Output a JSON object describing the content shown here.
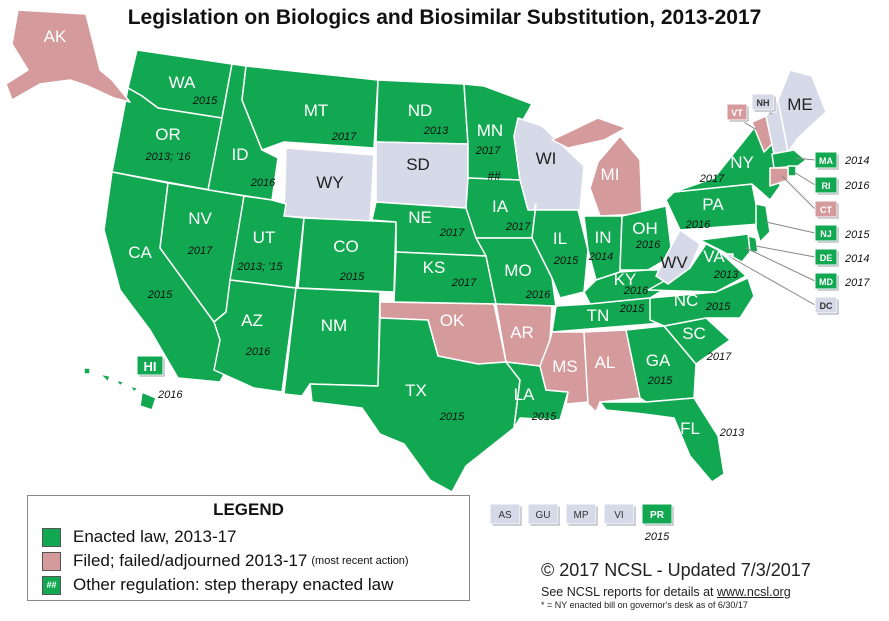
{
  "title": "Legislation on Biologics and Biosimilar Substitution, 2013-2017",
  "colors": {
    "enacted": "#11a851",
    "filed": "#d49a9c",
    "none": "#d5d9e8",
    "border": "#ffffff"
  },
  "states": {
    "WA": {
      "label": "WA",
      "year": "2015",
      "status": "enacted"
    },
    "OR": {
      "label": "OR",
      "year": "2013; '16",
      "status": "enacted"
    },
    "CA": {
      "label": "CA",
      "year": "2015",
      "status": "enacted"
    },
    "ID": {
      "label": "ID",
      "year": "2016",
      "status": "enacted"
    },
    "NV": {
      "label": "NV",
      "year": "2017",
      "status": "enacted"
    },
    "MT": {
      "label": "MT",
      "year": "2017",
      "status": "enacted"
    },
    "WY": {
      "label": "WY",
      "status": "none"
    },
    "UT": {
      "label": "UT",
      "year": "2013; '15",
      "status": "enacted"
    },
    "AZ": {
      "label": "AZ",
      "year": "2016",
      "status": "enacted"
    },
    "CO": {
      "label": "CO",
      "year": "2015",
      "status": "enacted"
    },
    "NM": {
      "label": "NM",
      "status": "enacted"
    },
    "ND": {
      "label": "ND",
      "year": "2013",
      "status": "enacted"
    },
    "SD": {
      "label": "SD",
      "status": "none"
    },
    "NE": {
      "label": "NE",
      "year": "2017",
      "status": "enacted"
    },
    "KS": {
      "label": "KS",
      "year": "2017",
      "status": "enacted"
    },
    "OK": {
      "label": "OK",
      "status": "filed"
    },
    "TX": {
      "label": "TX",
      "year": "2015",
      "status": "enacted"
    },
    "MN": {
      "label": "MN",
      "year": "2017",
      "extra": "##",
      "status": "enacted"
    },
    "IA": {
      "label": "IA",
      "year": "2017",
      "status": "enacted"
    },
    "MO": {
      "label": "MO",
      "year": "2016",
      "status": "enacted"
    },
    "AR": {
      "label": "AR",
      "status": "filed"
    },
    "LA": {
      "label": "LA",
      "year": "2015",
      "status": "enacted"
    },
    "WI": {
      "label": "WI",
      "status": "none"
    },
    "IL": {
      "label": "IL",
      "year": "2015",
      "status": "enacted"
    },
    "MI": {
      "label": "MI",
      "status": "filed"
    },
    "IN": {
      "label": "IN",
      "year": "2014",
      "status": "enacted"
    },
    "OH": {
      "label": "OH",
      "year": "2016",
      "status": "enacted"
    },
    "KY": {
      "label": "KY",
      "year": "2016",
      "status": "enacted"
    },
    "TN": {
      "label": "TN",
      "year": "2015",
      "status": "enacted"
    },
    "MS": {
      "label": "MS",
      "status": "filed"
    },
    "AL": {
      "label": "AL",
      "status": "filed"
    },
    "GA": {
      "label": "GA",
      "year": "2015",
      "status": "enacted"
    },
    "FL": {
      "label": "FL",
      "year": "2013",
      "status": "enacted"
    },
    "SC": {
      "label": "SC",
      "year": "2017",
      "status": "enacted"
    },
    "NC": {
      "label": "NC",
      "year": "2015",
      "status": "enacted"
    },
    "VA": {
      "label": "VA",
      "year": "2013",
      "status": "enacted"
    },
    "WV": {
      "label": "WV",
      "status": "none"
    },
    "PA": {
      "label": "PA",
      "year": "2016",
      "status": "enacted"
    },
    "NY": {
      "label": "NY",
      "year": "2017",
      "status": "enacted"
    },
    "VT": {
      "label": "VT",
      "status": "filed"
    },
    "NH": {
      "label": "NH",
      "status": "none"
    },
    "ME": {
      "label": "ME",
      "status": "none"
    },
    "MA": {
      "label": "MA",
      "year": "2014",
      "status": "enacted"
    },
    "RI": {
      "label": "RI",
      "year": "2016",
      "status": "enacted"
    },
    "CT": {
      "label": "CT",
      "status": "filed"
    },
    "NJ": {
      "label": "NJ",
      "year": "2015",
      "status": "enacted"
    },
    "DE": {
      "label": "DE",
      "year": "2014",
      "status": "enacted"
    },
    "MD": {
      "label": "MD",
      "year": "2017",
      "status": "enacted"
    },
    "DC": {
      "label": "DC",
      "status": "none"
    },
    "AK": {
      "label": "AK",
      "status": "filed"
    },
    "HI": {
      "label": "HI",
      "year": "2016",
      "status": "enacted"
    }
  },
  "territories": [
    {
      "label": "AS",
      "status": "none"
    },
    {
      "label": "GU",
      "status": "none"
    },
    {
      "label": "MP",
      "status": "none"
    },
    {
      "label": "VI",
      "status": "none"
    },
    {
      "label": "PR",
      "status": "enacted",
      "year": "2015"
    }
  ],
  "legend": {
    "title": "LEGEND",
    "enacted": "Enacted law, 2013-17",
    "filed": "Filed; failed/adjourned 2013-17",
    "filed_note": "(most recent action)",
    "other_marker": "##",
    "other": "Other regulation: step therapy enacted law"
  },
  "credits": {
    "copyright": "© 2017 NCSL - Updated 7/3/2017",
    "see_prefix": "See NCSL reports for details at ",
    "url": "www.ncsl.org",
    "note": "* = NY enacted bill on governor's desk as of 6/30/17"
  }
}
